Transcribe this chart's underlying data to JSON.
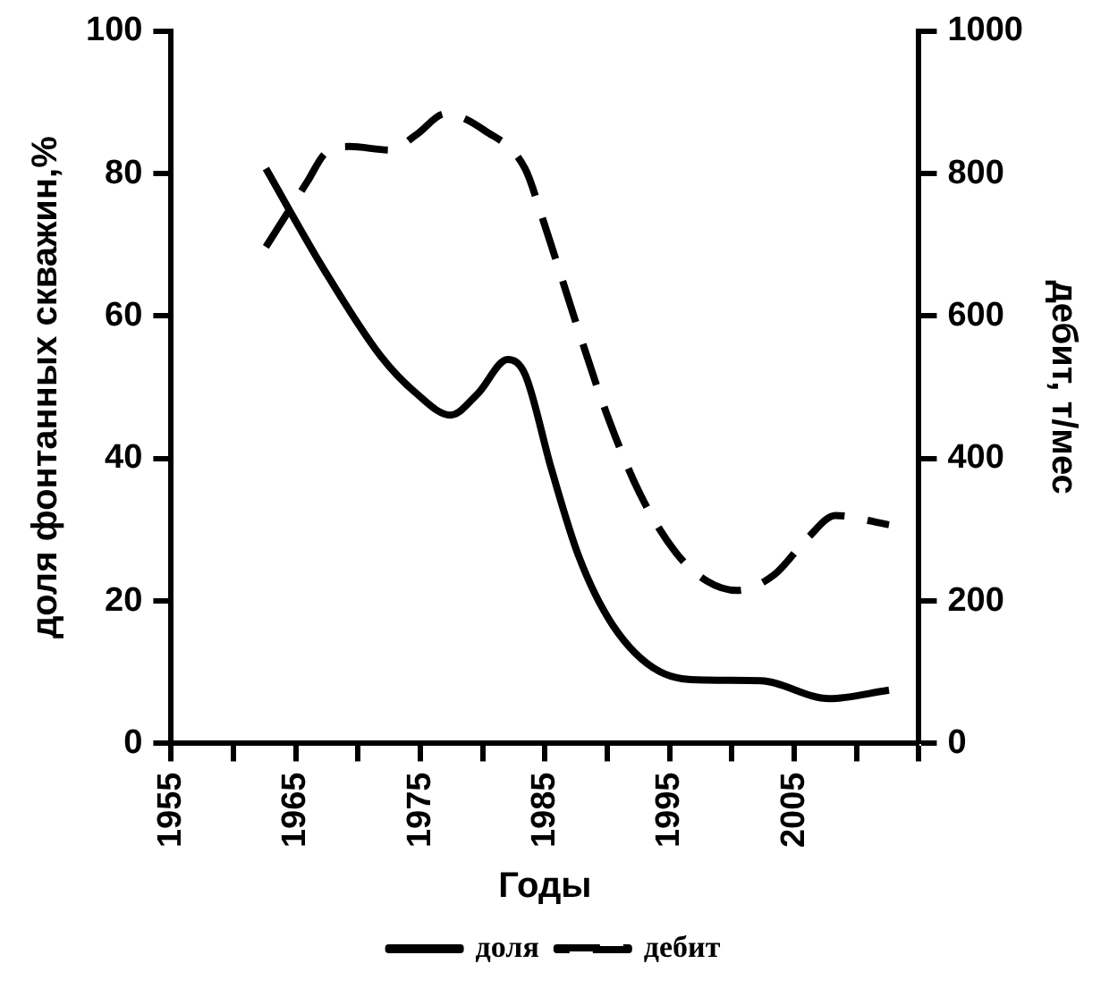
{
  "chart_data": {
    "type": "line",
    "xlabel": "Годы",
    "ylabel": "доля фонтанных скважин,%",
    "y2label": "дебит, т/мес",
    "xlim": [
      1955,
      2015
    ],
    "xticks": [
      1955,
      {
        "value": 1960,
        "label": null
      },
      1965,
      {
        "value": 1970,
        "label": null
      },
      1975,
      {
        "value": 1980,
        "label": null
      },
      1985,
      {
        "value": 1990,
        "label": null
      },
      1995,
      {
        "value": 2000,
        "label": null
      },
      2005,
      {
        "value": 2010,
        "label": null
      },
      {
        "value": 2015,
        "label": null
      }
    ],
    "ylim": [
      0,
      100
    ],
    "yticks": [
      0,
      20,
      40,
      60,
      80,
      100
    ],
    "y2lim": [
      0,
      1000
    ],
    "y2ticks": [
      0,
      200,
      400,
      600,
      800,
      1000
    ],
    "grid": false,
    "legend": "bottom",
    "series": [
      {
        "name": "доля",
        "color": "#000000",
        "line_style": "solid",
        "x": [
          1962.6,
          1967.2,
          1971.8,
          1974.7,
          1977.4,
          1979.6,
          1982.0,
          1983.4,
          1985.5,
          1987.7,
          1990.4,
          1994.2,
          1998.0,
          2002.3,
          2007.8,
          2012.6
        ],
        "values": [
          80.7,
          66.7,
          54.4,
          49.1,
          46.1,
          49.1,
          53.9,
          51.8,
          38.6,
          26.3,
          16.7,
          10.1,
          8.9,
          8.8,
          6.3,
          7.5
        ]
      },
      {
        "name": "дебит",
        "color": "#000000",
        "line_style": "dashed",
        "axis": "y2",
        "x": [
          1962.6,
          1965.9,
          1967.4,
          1969.3,
          1972.6,
          1974.7,
          1977.0,
          1980.2,
          1983.4,
          1984.8,
          1987.7,
          1989.9,
          1992.6,
          1995.5,
          1998.0,
          2000.4,
          2003.4,
          2006.1,
          2008.3,
          2012.6
        ],
        "values": [
          697,
          788,
          829,
          838,
          833,
          855,
          884,
          860,
          807,
          737,
          579,
          465,
          351,
          268,
          228,
          215,
          237,
          289,
          320,
          307
        ]
      }
    ]
  }
}
